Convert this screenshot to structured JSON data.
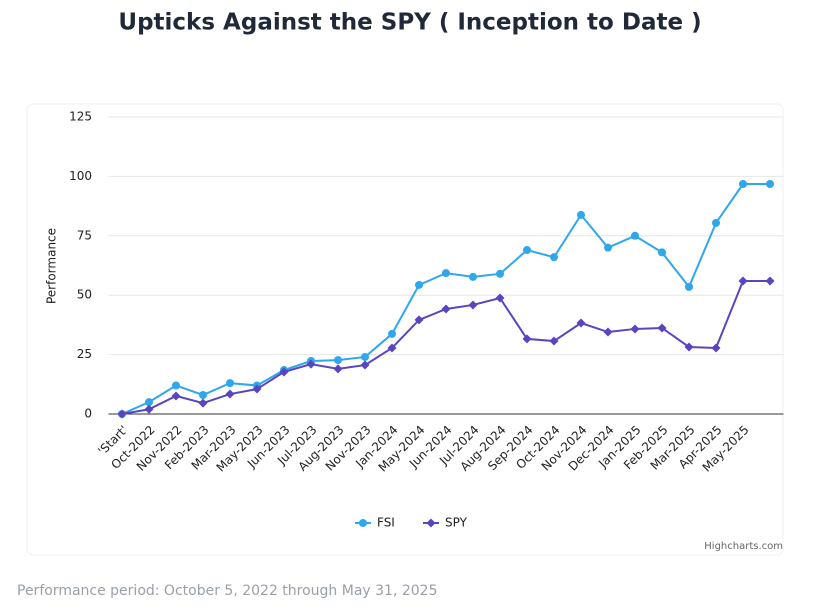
{
  "chart_data": {
    "type": "line",
    "title": "Upticks Against the SPY ( Inception to Date )",
    "y_label": "Performance",
    "categories": [
      "'Start'",
      "Oct-2022",
      "Nov-2022",
      "Feb-2023",
      "Mar-2023",
      "May-2023",
      "Jun-2023",
      "Jul-2023",
      "Aug-2023",
      "Nov-2023",
      "Jan-2024",
      "May-2024",
      "Jun-2024",
      "Jul-2024",
      "Aug-2024",
      "Sep-2024",
      "Oct-2024",
      "Nov-2024",
      "Dec-2024",
      "Jan-2025",
      "Feb-2025",
      "Mar-2025",
      "Apr-2025",
      "May-2025",
      null
    ],
    "series": [
      {
        "name": "FSI",
        "color": "#2ea7ec",
        "marker": "circle",
        "values": [
          0,
          5,
          12,
          8,
          13,
          12,
          18.5,
          22.3,
          22.7,
          24,
          33.7,
          54.3,
          59.3,
          57.7,
          59,
          69,
          66,
          83.8,
          70,
          75,
          68,
          53.5,
          80.4,
          96.8,
          96.8
        ]
      },
      {
        "name": "SPY",
        "color": "#5a45c0",
        "marker": "diamond",
        "values": [
          0,
          2,
          7.6,
          4.6,
          8.4,
          10.5,
          17.7,
          21,
          19,
          20.6,
          27.8,
          39.6,
          44.2,
          45.9,
          48.8,
          31.6,
          30.7,
          38.3,
          34.5,
          35.8,
          36.2,
          28.2,
          27.8,
          56,
          56
        ]
      }
    ],
    "ylim": [
      0,
      125
    ],
    "yticks": [
      0,
      25,
      50,
      75,
      100,
      125
    ],
    "grid": true,
    "credit": "Highcharts.com",
    "footnote": "Performance period: October 5, 2022 through May 31, 2025"
  }
}
